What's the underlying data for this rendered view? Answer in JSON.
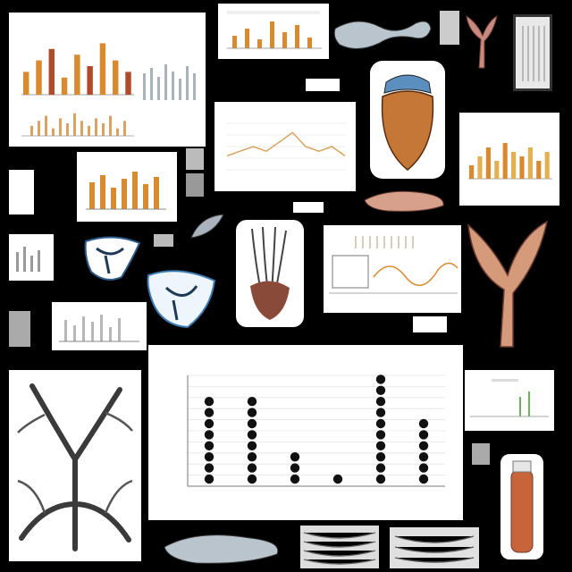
{
  "collage": {
    "background_color": "#000000",
    "accent_orange": "#d9892e",
    "accent_blue": "#5aa0d0",
    "dot_color": "#111111"
  },
  "main_dot_chart": {
    "chart_data": {
      "type": "scatter",
      "title": "",
      "categories": [
        "",
        "",
        "",
        "",
        "",
        ""
      ],
      "values": [
        8,
        8,
        3,
        1,
        10,
        6
      ],
      "xlabel": "",
      "ylabel": "",
      "ylim": [
        0,
        10
      ],
      "grid": true
    }
  },
  "top_bar_chart": {
    "chart_data": {
      "type": "bar",
      "values": [
        4,
        6,
        8,
        3,
        7,
        5,
        9,
        6,
        4,
        7,
        5,
        8,
        3,
        6
      ],
      "ylim": [
        0,
        10
      ]
    }
  },
  "right_bar_chart": {
    "chart_data": {
      "type": "bar",
      "values": [
        3,
        5,
        7,
        4,
        8,
        6,
        5,
        7,
        4,
        6
      ],
      "ylim": [
        0,
        10
      ]
    }
  },
  "line_chart": {
    "chart_data": {
      "type": "line",
      "values": [
        3,
        4,
        5,
        4,
        6,
        8,
        5,
        4,
        5,
        3
      ],
      "ylim": [
        0,
        10
      ]
    }
  },
  "icons": {
    "tree": "tree-illustration-icon",
    "anatomy": "anatomy-illustration-icon",
    "bone": "bone-illustration-icon",
    "leaf": "leaf-illustration-icon"
  }
}
